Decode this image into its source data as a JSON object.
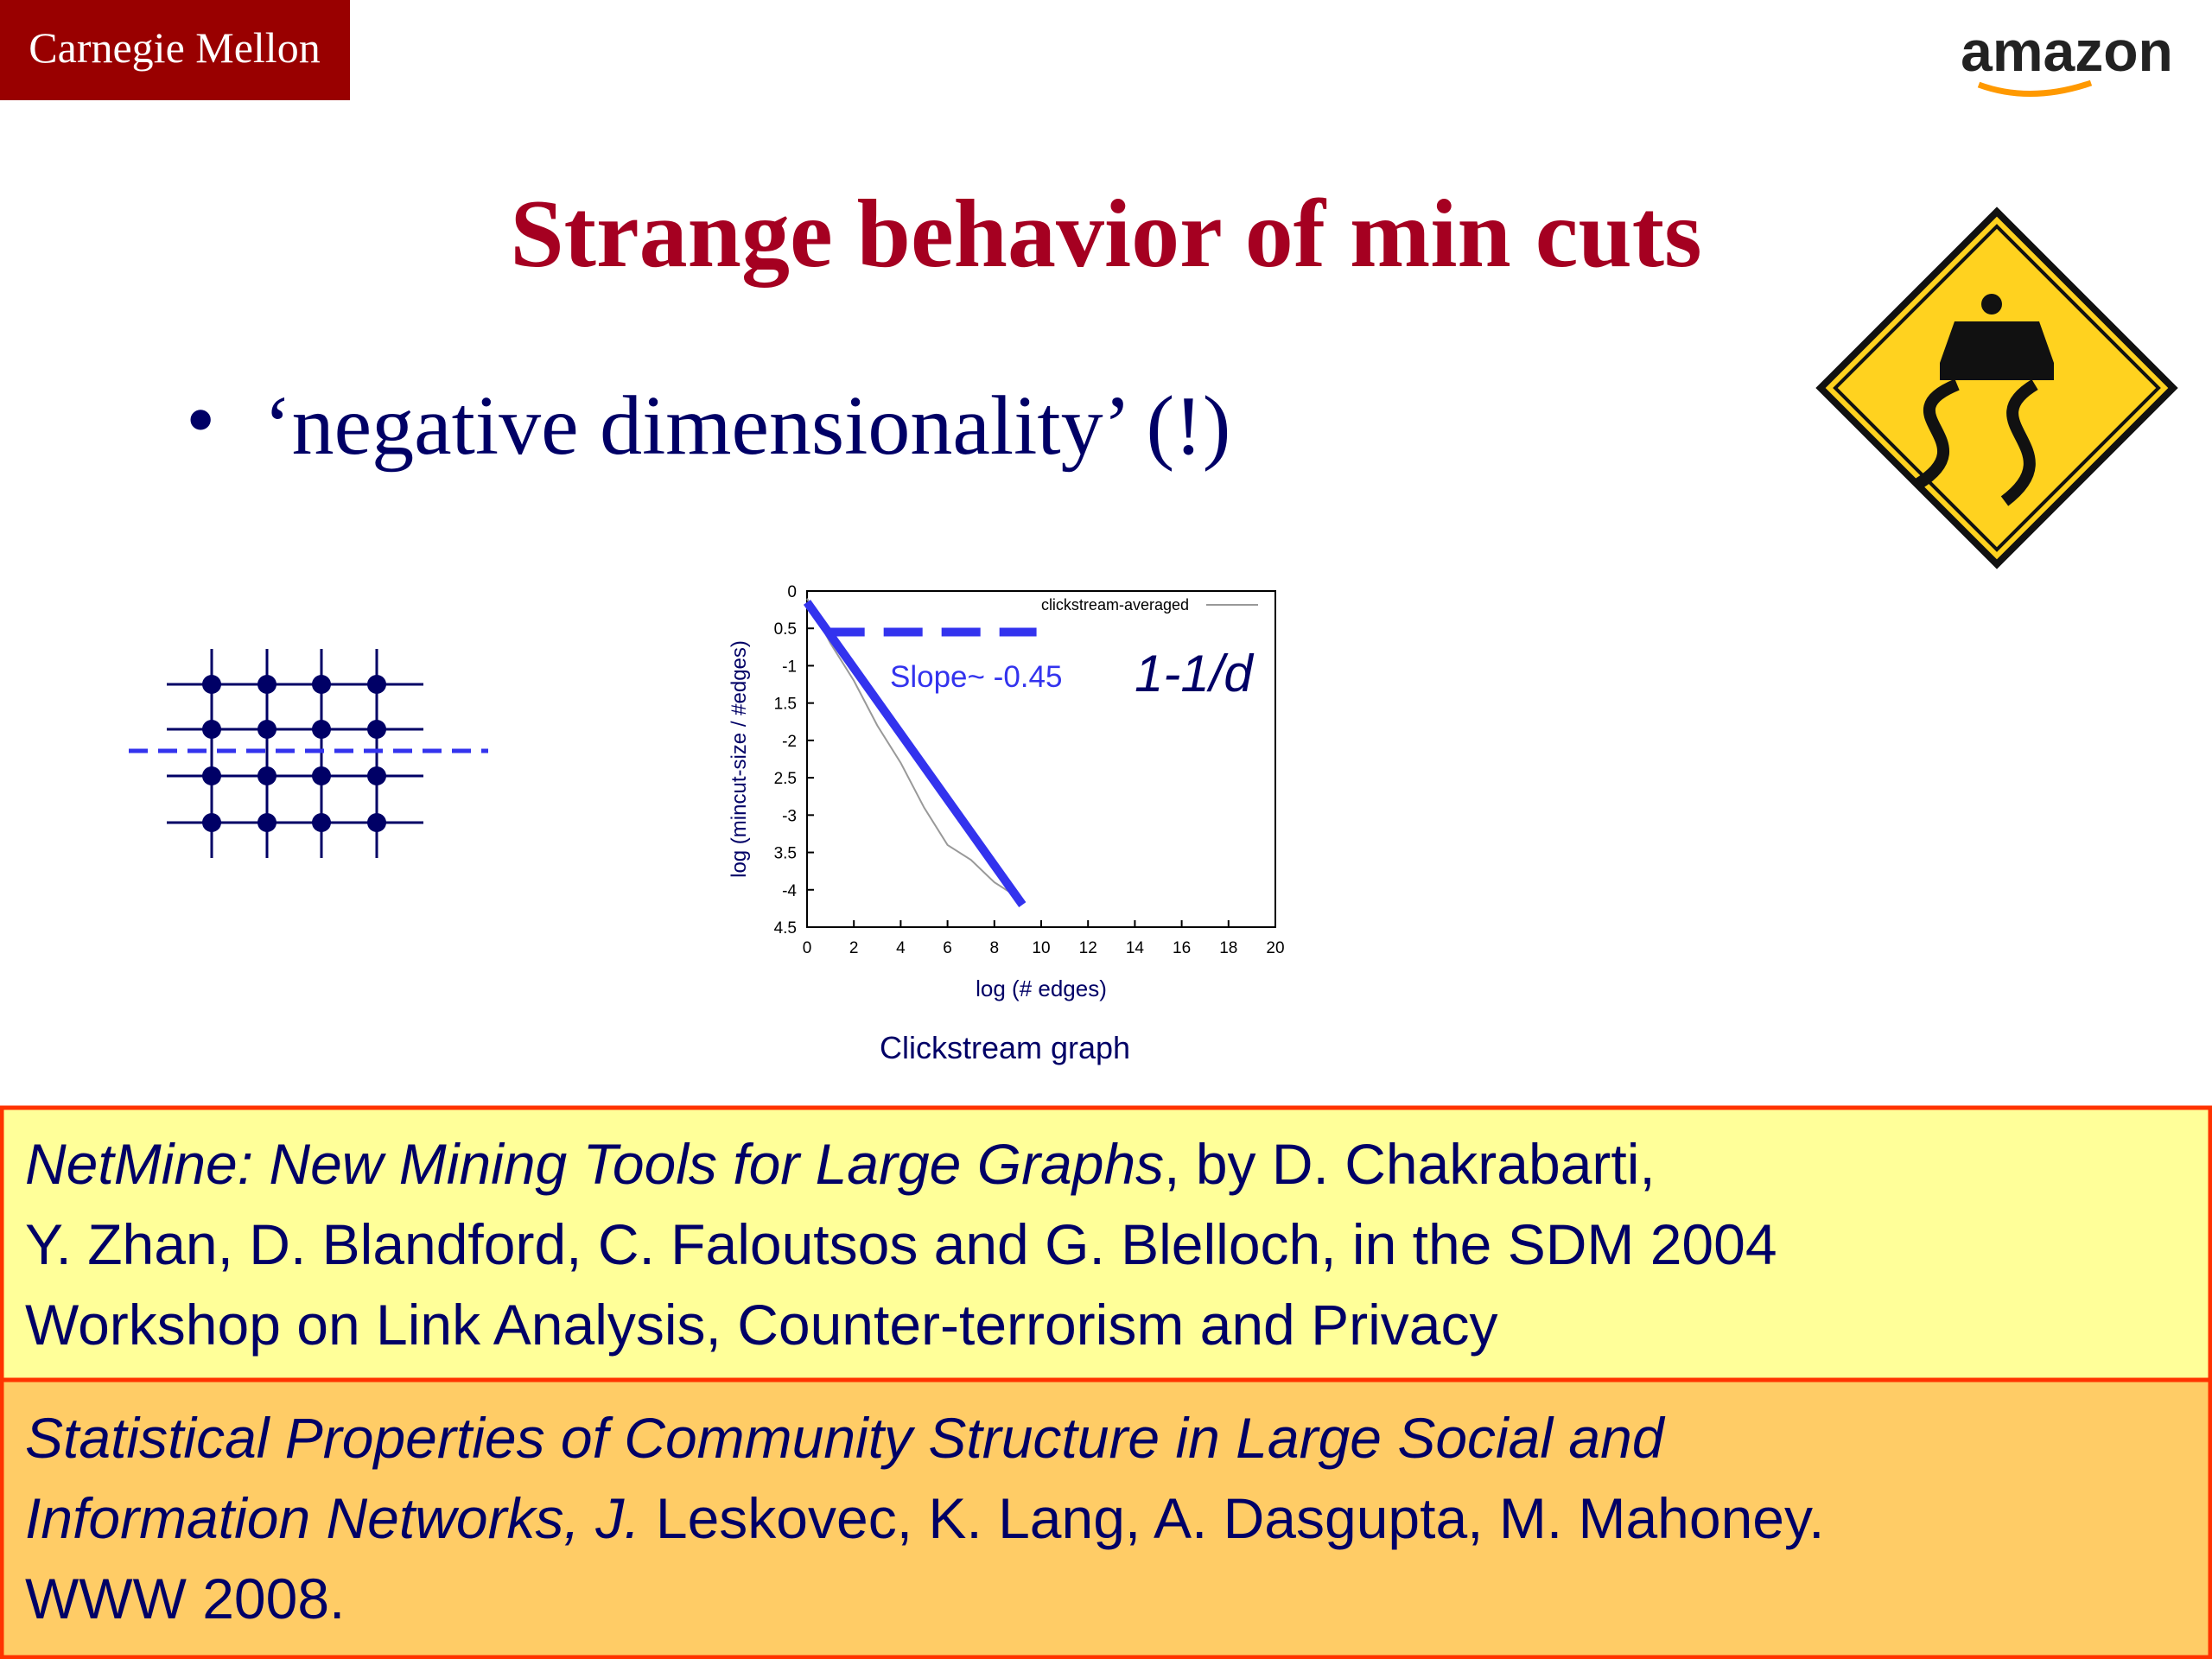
{
  "header": {
    "left_logo": "Carnegie Mellon",
    "right_logo": "amazon"
  },
  "title": "Strange behavior of min cuts",
  "bullet": "‘negative dimensionality’ (!)",
  "chart": {
    "type": "line",
    "caption": "Clickstream graph",
    "x_label": "log (# edges)",
    "y_label": "log (mincut-size / #edges)",
    "annotations": [
      "Slope~ -0.45",
      "1-1/d"
    ],
    "xlim": [
      0,
      20
    ],
    "xticks": [
      0,
      2,
      4,
      6,
      8,
      10,
      12,
      14,
      16,
      18,
      20
    ],
    "ylim": [
      -4.5,
      0
    ],
    "yticks": [
      0,
      {
        "value": -0.5,
        "label": "0.5"
      },
      -1,
      {
        "value": -1.5,
        "label": "1.5"
      },
      -2,
      {
        "value": -2.5,
        "label": "2.5"
      },
      -3,
      {
        "value": -3.5,
        "label": "3.5"
      },
      -4,
      {
        "value": -4.5,
        "label": "4.5"
      }
    ],
    "legend": "upper right",
    "series": [
      {
        "name": "clickstream-averaged",
        "color": "#999999",
        "x": [
          0,
          1,
          2,
          3,
          4,
          5,
          6,
          7,
          8,
          9
        ],
        "values": [
          -0.1,
          -0.7,
          -1.2,
          -1.8,
          -2.3,
          -2.9,
          -3.4,
          -3.6,
          -3.9,
          -4.1
        ]
      },
      {
        "color": "#3333ee",
        "x": [
          0,
          9.2
        ],
        "values": [
          -0.15,
          -4.2
        ]
      },
      {
        "color": "#3333ee",
        "dashed": true,
        "x": [
          0.8,
          9.8
        ],
        "values": [
          -0.55,
          -0.55
        ]
      }
    ]
  },
  "references": [
    {
      "lines": [
        [
          {
            "text": "NetMine: New Mining Tools for Large Graphs",
            "italic": true
          },
          {
            "text": ", by D. Chakrabarti,",
            "italic": false
          }
        ],
        [
          {
            "text": "Y. Zhan, D. Blandford, C. Faloutsos and G. Blelloch, in the SDM 2004",
            "italic": false
          }
        ],
        [
          {
            "text": "Workshop on Link Analysis, Counter-terrorism and Privacy",
            "italic": false
          }
        ]
      ]
    },
    {
      "lines": [
        [
          {
            "text": "Statistical Properties of Community Structure in Large Social and",
            "italic": true
          }
        ],
        [
          {
            "text": "Information Networks, J.",
            "italic": true
          },
          {
            "text": " Leskovec, K. Lang, A. Dasgupta, M. Mahoney.",
            "italic": false
          }
        ],
        [
          {
            "text": "WWW 2008.",
            "italic": false
          }
        ]
      ]
    }
  ]
}
